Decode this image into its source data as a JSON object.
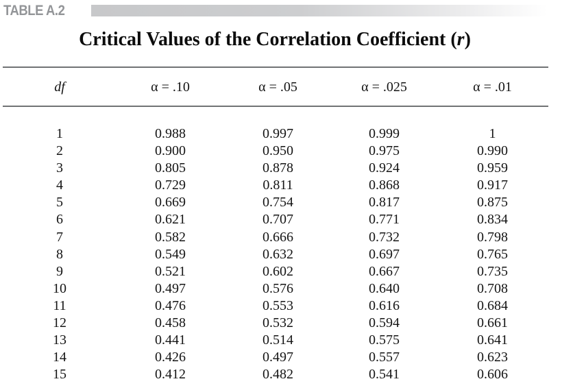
{
  "header": {
    "table_label": "TABLE A.2"
  },
  "title": {
    "text_before_r": "Critical Values of the Correlation Coefficient (",
    "r_symbol": "r",
    "text_after_r": ")"
  },
  "table": {
    "columns": [
      "df",
      "α = .10",
      "α = .05",
      "α = .025",
      "α = .01"
    ],
    "rows": [
      [
        "1",
        "0.988",
        "0.997",
        "0.999",
        "1"
      ],
      [
        "2",
        "0.900",
        "0.950",
        "0.975",
        "0.990"
      ],
      [
        "3",
        "0.805",
        "0.878",
        "0.924",
        "0.959"
      ],
      [
        "4",
        "0.729",
        "0.811",
        "0.868",
        "0.917"
      ],
      [
        "5",
        "0.669",
        "0.754",
        "0.817",
        "0.875"
      ],
      [
        "6",
        "0.621",
        "0.707",
        "0.771",
        "0.834"
      ],
      [
        "7",
        "0.582",
        "0.666",
        "0.732",
        "0.798"
      ],
      [
        "8",
        "0.549",
        "0.632",
        "0.697",
        "0.765"
      ],
      [
        "9",
        "0.521",
        "0.602",
        "0.667",
        "0.735"
      ],
      [
        "10",
        "0.497",
        "0.576",
        "0.640",
        "0.708"
      ],
      [
        "11",
        "0.476",
        "0.553",
        "0.616",
        "0.684"
      ],
      [
        "12",
        "0.458",
        "0.532",
        "0.594",
        "0.661"
      ],
      [
        "13",
        "0.441",
        "0.514",
        "0.575",
        "0.641"
      ],
      [
        "14",
        "0.426",
        "0.497",
        "0.557",
        "0.623"
      ],
      [
        "15",
        "0.412",
        "0.482",
        "0.541",
        "0.606"
      ]
    ]
  },
  "colors": {
    "label_gray": "#939598",
    "bar_gray": "#c7c8ca",
    "rule_gray": "#707274",
    "text_black": "#141414"
  }
}
